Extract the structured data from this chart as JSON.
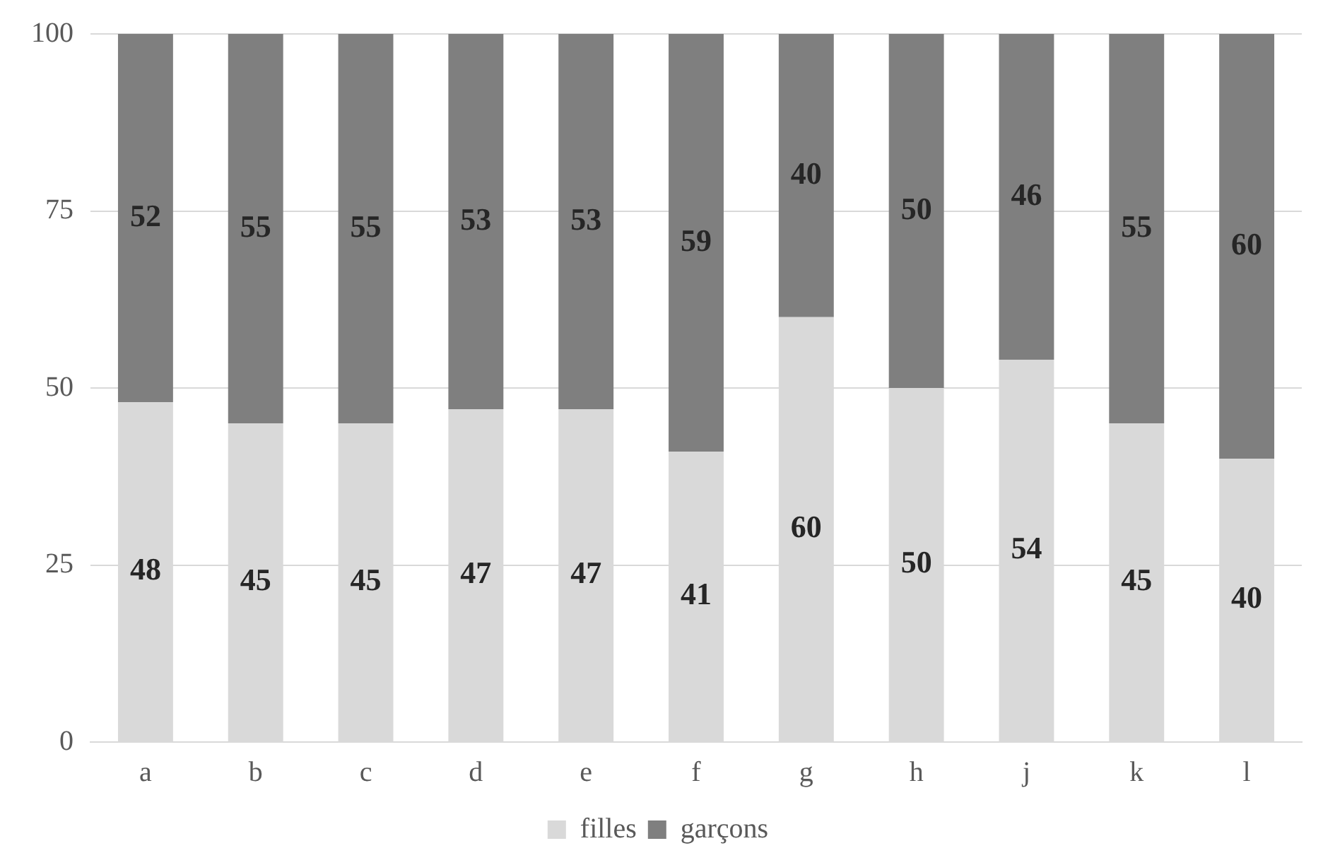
{
  "chart_data": {
    "type": "bar",
    "stacked": true,
    "categories": [
      "a",
      "b",
      "c",
      "d",
      "e",
      "f",
      "g",
      "h",
      "j",
      "k",
      "l"
    ],
    "series": [
      {
        "name": "filles",
        "color": "#d9d9d9",
        "values": [
          48,
          45,
          45,
          47,
          47,
          41,
          60,
          50,
          54,
          45,
          40
        ]
      },
      {
        "name": "garçons",
        "color": "#7f7f7f",
        "values": [
          52,
          55,
          55,
          53,
          53,
          59,
          40,
          50,
          46,
          55,
          60
        ]
      }
    ],
    "ylim": [
      0,
      100
    ],
    "yticks": [
      0,
      25,
      50,
      75,
      100
    ],
    "grid": "y",
    "legend": "bottom",
    "data_labels": true
  }
}
